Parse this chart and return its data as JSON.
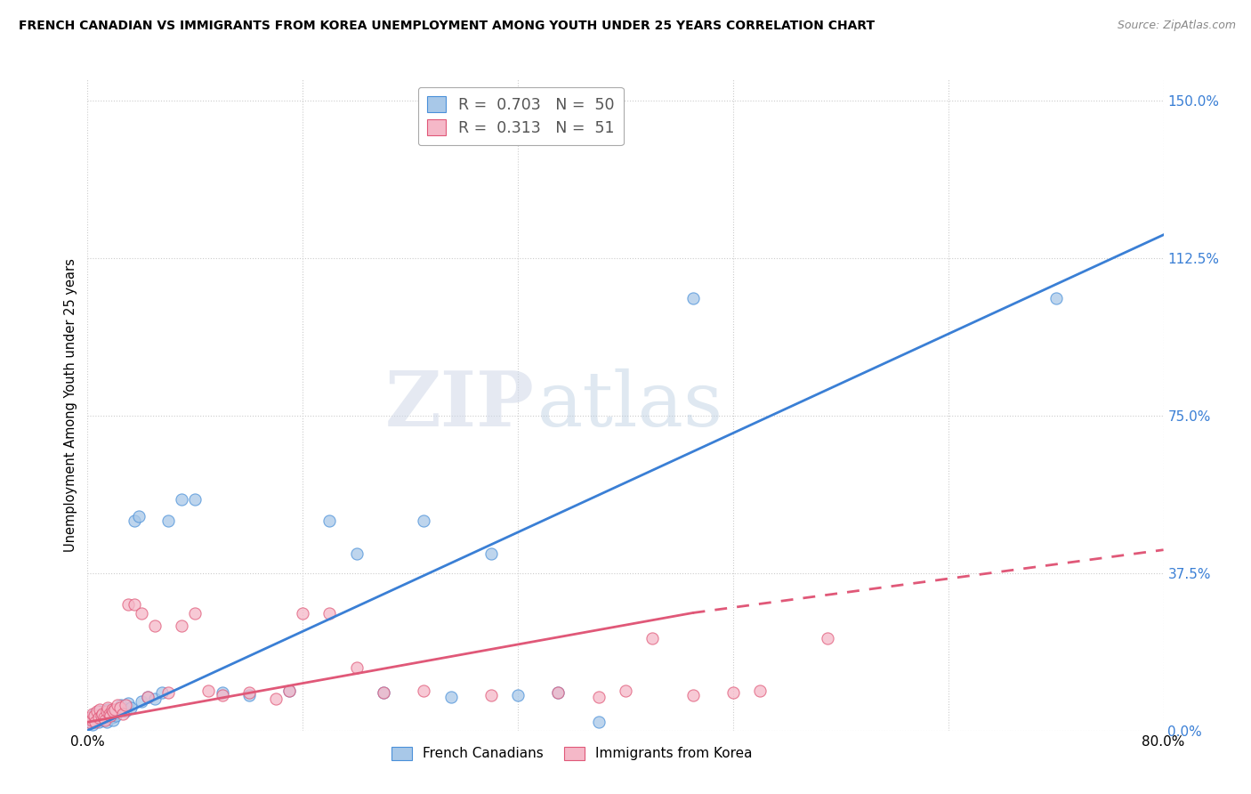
{
  "title": "FRENCH CANADIAN VS IMMIGRANTS FROM KOREA UNEMPLOYMENT AMONG YOUTH UNDER 25 YEARS CORRELATION CHART",
  "source": "Source: ZipAtlas.com",
  "ylabel": "Unemployment Among Youth under 25 years",
  "ytick_values": [
    0.0,
    37.5,
    75.0,
    112.5,
    150.0
  ],
  "xtick_values": [
    0.0,
    16.0,
    32.0,
    48.0,
    64.0,
    80.0
  ],
  "xlim": [
    0,
    80
  ],
  "ylim": [
    0,
    155
  ],
  "watermark_zip": "ZIP",
  "watermark_atlas": "atlas",
  "blue_color": "#a8c8e8",
  "blue_edge_color": "#4a90d9",
  "pink_color": "#f5b8c8",
  "pink_edge_color": "#e05878",
  "blue_line_color": "#3a7fd5",
  "pink_line_color": "#e05878",
  "legend_blue_R": "0.703",
  "legend_blue_N": "50",
  "legend_pink_R": "0.313",
  "legend_pink_N": "51",
  "legend_label_blue": "French Canadians",
  "legend_label_pink": "Immigrants from Korea",
  "blue_line_x0": 0,
  "blue_line_y0": 0,
  "blue_line_x1": 80,
  "blue_line_y1": 118,
  "pink_solid_x0": 0,
  "pink_solid_y0": 2,
  "pink_solid_x1": 45,
  "pink_solid_y1": 28,
  "pink_dash_x0": 45,
  "pink_dash_y0": 28,
  "pink_dash_x1": 80,
  "pink_dash_y1": 43,
  "blue_pts_x": [
    0.2,
    0.3,
    0.4,
    0.5,
    0.6,
    0.7,
    0.8,
    0.9,
    1.0,
    1.1,
    1.2,
    1.3,
    1.4,
    1.5,
    1.6,
    1.7,
    1.8,
    1.9,
    2.0,
    2.1,
    2.2,
    2.3,
    2.5,
    2.6,
    2.8,
    3.0,
    3.2,
    3.5,
    3.8,
    4.0,
    4.5,
    5.0,
    5.5,
    6.0,
    7.0,
    8.0,
    10.0,
    12.0,
    15.0,
    18.0,
    20.0,
    22.0,
    25.0,
    27.0,
    30.0,
    32.0,
    35.0,
    38.0,
    45.0,
    72.0
  ],
  "blue_pts_y": [
    2.0,
    3.0,
    1.5,
    4.0,
    2.5,
    3.5,
    2.0,
    4.5,
    3.0,
    2.5,
    4.0,
    3.0,
    2.0,
    5.0,
    3.5,
    4.0,
    3.0,
    2.5,
    4.0,
    3.5,
    5.0,
    4.5,
    6.0,
    5.0,
    4.5,
    6.5,
    5.5,
    50.0,
    51.0,
    7.0,
    8.0,
    7.5,
    9.0,
    50.0,
    55.0,
    55.0,
    9.0,
    8.5,
    9.5,
    50.0,
    42.0,
    9.0,
    50.0,
    8.0,
    42.0,
    8.5,
    9.0,
    2.0,
    103.0,
    103.0
  ],
  "pink_pts_x": [
    0.1,
    0.2,
    0.3,
    0.4,
    0.5,
    0.6,
    0.7,
    0.8,
    0.9,
    1.0,
    1.1,
    1.2,
    1.3,
    1.4,
    1.5,
    1.6,
    1.7,
    1.8,
    1.9,
    2.0,
    2.2,
    2.4,
    2.6,
    2.8,
    3.0,
    3.5,
    4.0,
    4.5,
    5.0,
    6.0,
    7.0,
    8.0,
    9.0,
    10.0,
    12.0,
    14.0,
    15.0,
    16.0,
    18.0,
    20.0,
    22.0,
    25.0,
    30.0,
    35.0,
    38.0,
    40.0,
    42.0,
    45.0,
    48.0,
    50.0,
    55.0
  ],
  "pink_pts_y": [
    2.0,
    3.0,
    2.5,
    4.0,
    3.5,
    2.0,
    4.5,
    3.0,
    5.0,
    3.5,
    4.0,
    3.0,
    2.5,
    4.5,
    5.5,
    4.0,
    3.5,
    5.0,
    4.5,
    5.0,
    6.0,
    5.5,
    4.0,
    6.0,
    30.0,
    30.0,
    28.0,
    8.0,
    25.0,
    9.0,
    25.0,
    28.0,
    9.5,
    8.5,
    9.0,
    7.5,
    9.5,
    28.0,
    28.0,
    15.0,
    9.0,
    9.5,
    8.5,
    9.0,
    8.0,
    9.5,
    22.0,
    8.5,
    9.0,
    9.5,
    22.0
  ]
}
